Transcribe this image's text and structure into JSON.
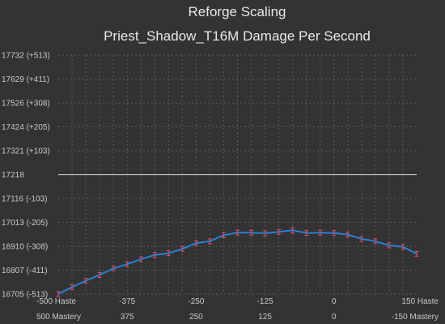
{
  "chart_data": {
    "type": "line",
    "title": "Reforge Scaling",
    "subtitle": "Priest_Shadow_T16M Damage Per Second",
    "baseline": 17218,
    "ylim": [
      16705,
      17732
    ],
    "xlim": [
      -500,
      150
    ],
    "y_ticks": [
      {
        "value": 17732,
        "label": "17732 (+513)"
      },
      {
        "value": 17629,
        "label": "17629 (+411)"
      },
      {
        "value": 17526,
        "label": "17526 (+308)"
      },
      {
        "value": 17424,
        "label": "17424 (+205)"
      },
      {
        "value": 17321,
        "label": "17321 (+103)"
      },
      {
        "value": 17218,
        "label": "17218"
      },
      {
        "value": 17116,
        "label": "17116 (-103)"
      },
      {
        "value": 17013,
        "label": "17013 (-205)"
      },
      {
        "value": 16910,
        "label": "16910 (-308)"
      },
      {
        "value": 16807,
        "label": "16807 (-411)"
      },
      {
        "value": 16705,
        "label": "16705 (-513)"
      }
    ],
    "x_ticks": [
      {
        "value": -500,
        "top": "-500 Haste",
        "bottom": "500 Mastery"
      },
      {
        "value": -375,
        "top": "-375",
        "bottom": "375"
      },
      {
        "value": -250,
        "top": "-250",
        "bottom": "250"
      },
      {
        "value": -125,
        "top": "-125",
        "bottom": "125"
      },
      {
        "value": 0,
        "top": "0",
        "bottom": "0"
      },
      {
        "value": 150,
        "top": "150 Haste",
        "bottom": "-150 Mastery"
      }
    ],
    "grid": true,
    "series": [
      {
        "color": "#2a7fd4",
        "error_color": "#e0506a",
        "x": [
          -500,
          -475,
          -450,
          -425,
          -400,
          -375,
          -350,
          -325,
          -300,
          -275,
          -250,
          -225,
          -200,
          -175,
          -150,
          -125,
          -100,
          -75,
          -50,
          -25,
          0,
          25,
          50,
          75,
          100,
          125,
          150
        ],
        "y": [
          16705,
          16735,
          16762,
          16787,
          16815,
          16833,
          16855,
          16873,
          16880,
          16899,
          16924,
          16932,
          16958,
          16969,
          16969,
          16966,
          16972,
          16979,
          16967,
          16969,
          16967,
          16961,
          16942,
          16932,
          16914,
          16908,
          16878
        ]
      }
    ]
  }
}
